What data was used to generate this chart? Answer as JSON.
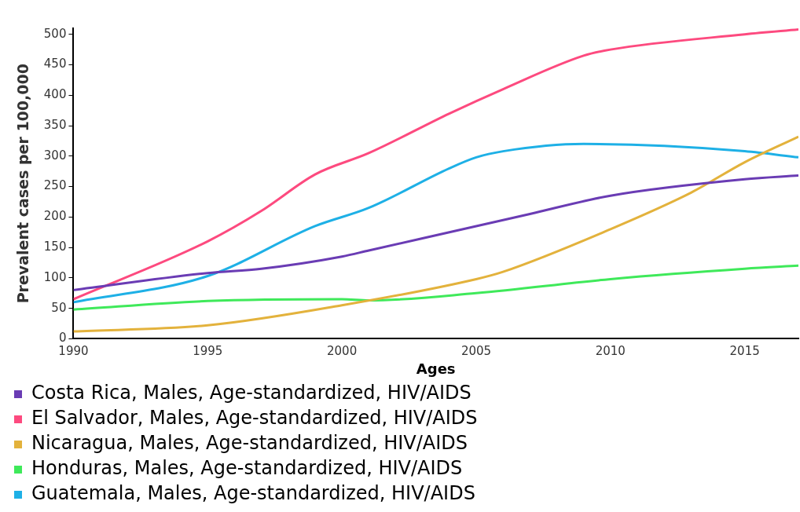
{
  "chart_data": {
    "type": "line",
    "xlabel": "Ages",
    "ylabel": "Prevalent cases per 100,000",
    "xlim": [
      1990,
      2017
    ],
    "xticks": [
      1990,
      1995,
      2000,
      2005,
      2010,
      2015
    ],
    "ylim": [
      0,
      510
    ],
    "yticks": [
      0,
      50,
      100,
      150,
      200,
      250,
      300,
      350,
      400,
      450,
      500
    ],
    "grid": false,
    "legend": "bottom",
    "marker": "none",
    "line_style": "solid",
    "series": [
      {
        "name": "Costa Rica, Males, Age-standardized, HIV/AIDS",
        "color": "#6a3cb4",
        "x": [
          1990,
          1995,
          1997,
          2000,
          2001,
          2005,
          2007,
          2010,
          2015,
          2017
        ],
        "values": [
          80,
          108,
          115,
          135,
          145,
          185,
          205,
          235,
          262,
          268
        ]
      },
      {
        "name": "El Salvador, Males, Age-standardized, HIV/AIDS",
        "color": "#fd4a7f",
        "x": [
          1990,
          1995,
          1997,
          1999,
          2001,
          2004,
          2006,
          2009,
          2010,
          2015,
          2017
        ],
        "values": [
          65,
          160,
          210,
          270,
          305,
          370,
          410,
          465,
          475,
          500,
          508
        ]
      },
      {
        "name": "Nicaragua, Males, Age-standardized, HIV/AIDS",
        "color": "#e3b23c",
        "x": [
          1990,
          1995,
          2000,
          2005,
          2006,
          2010,
          2013,
          2015,
          2017
        ],
        "values": [
          12,
          22,
          55,
          98,
          110,
          180,
          240,
          290,
          332
        ]
      },
      {
        "name": "Honduras, Males, Age-standardized, HIV/AIDS",
        "color": "#3fe95a",
        "x": [
          1990,
          1995,
          2000,
          2001,
          2005,
          2010,
          2015,
          2017
        ],
        "values": [
          48,
          62,
          65,
          63,
          75,
          98,
          115,
          120
        ]
      },
      {
        "name": "Guatemala, Males, Age-standardized, HIV/AIDS",
        "color": "#1eb0e6",
        "x": [
          1990,
          1995,
          1999,
          2001,
          2004,
          2005,
          2006,
          2009,
          2012,
          2015,
          2017
        ],
        "values": [
          60,
          103,
          185,
          215,
          280,
          298,
          308,
          320,
          317,
          308,
          298
        ]
      }
    ]
  }
}
